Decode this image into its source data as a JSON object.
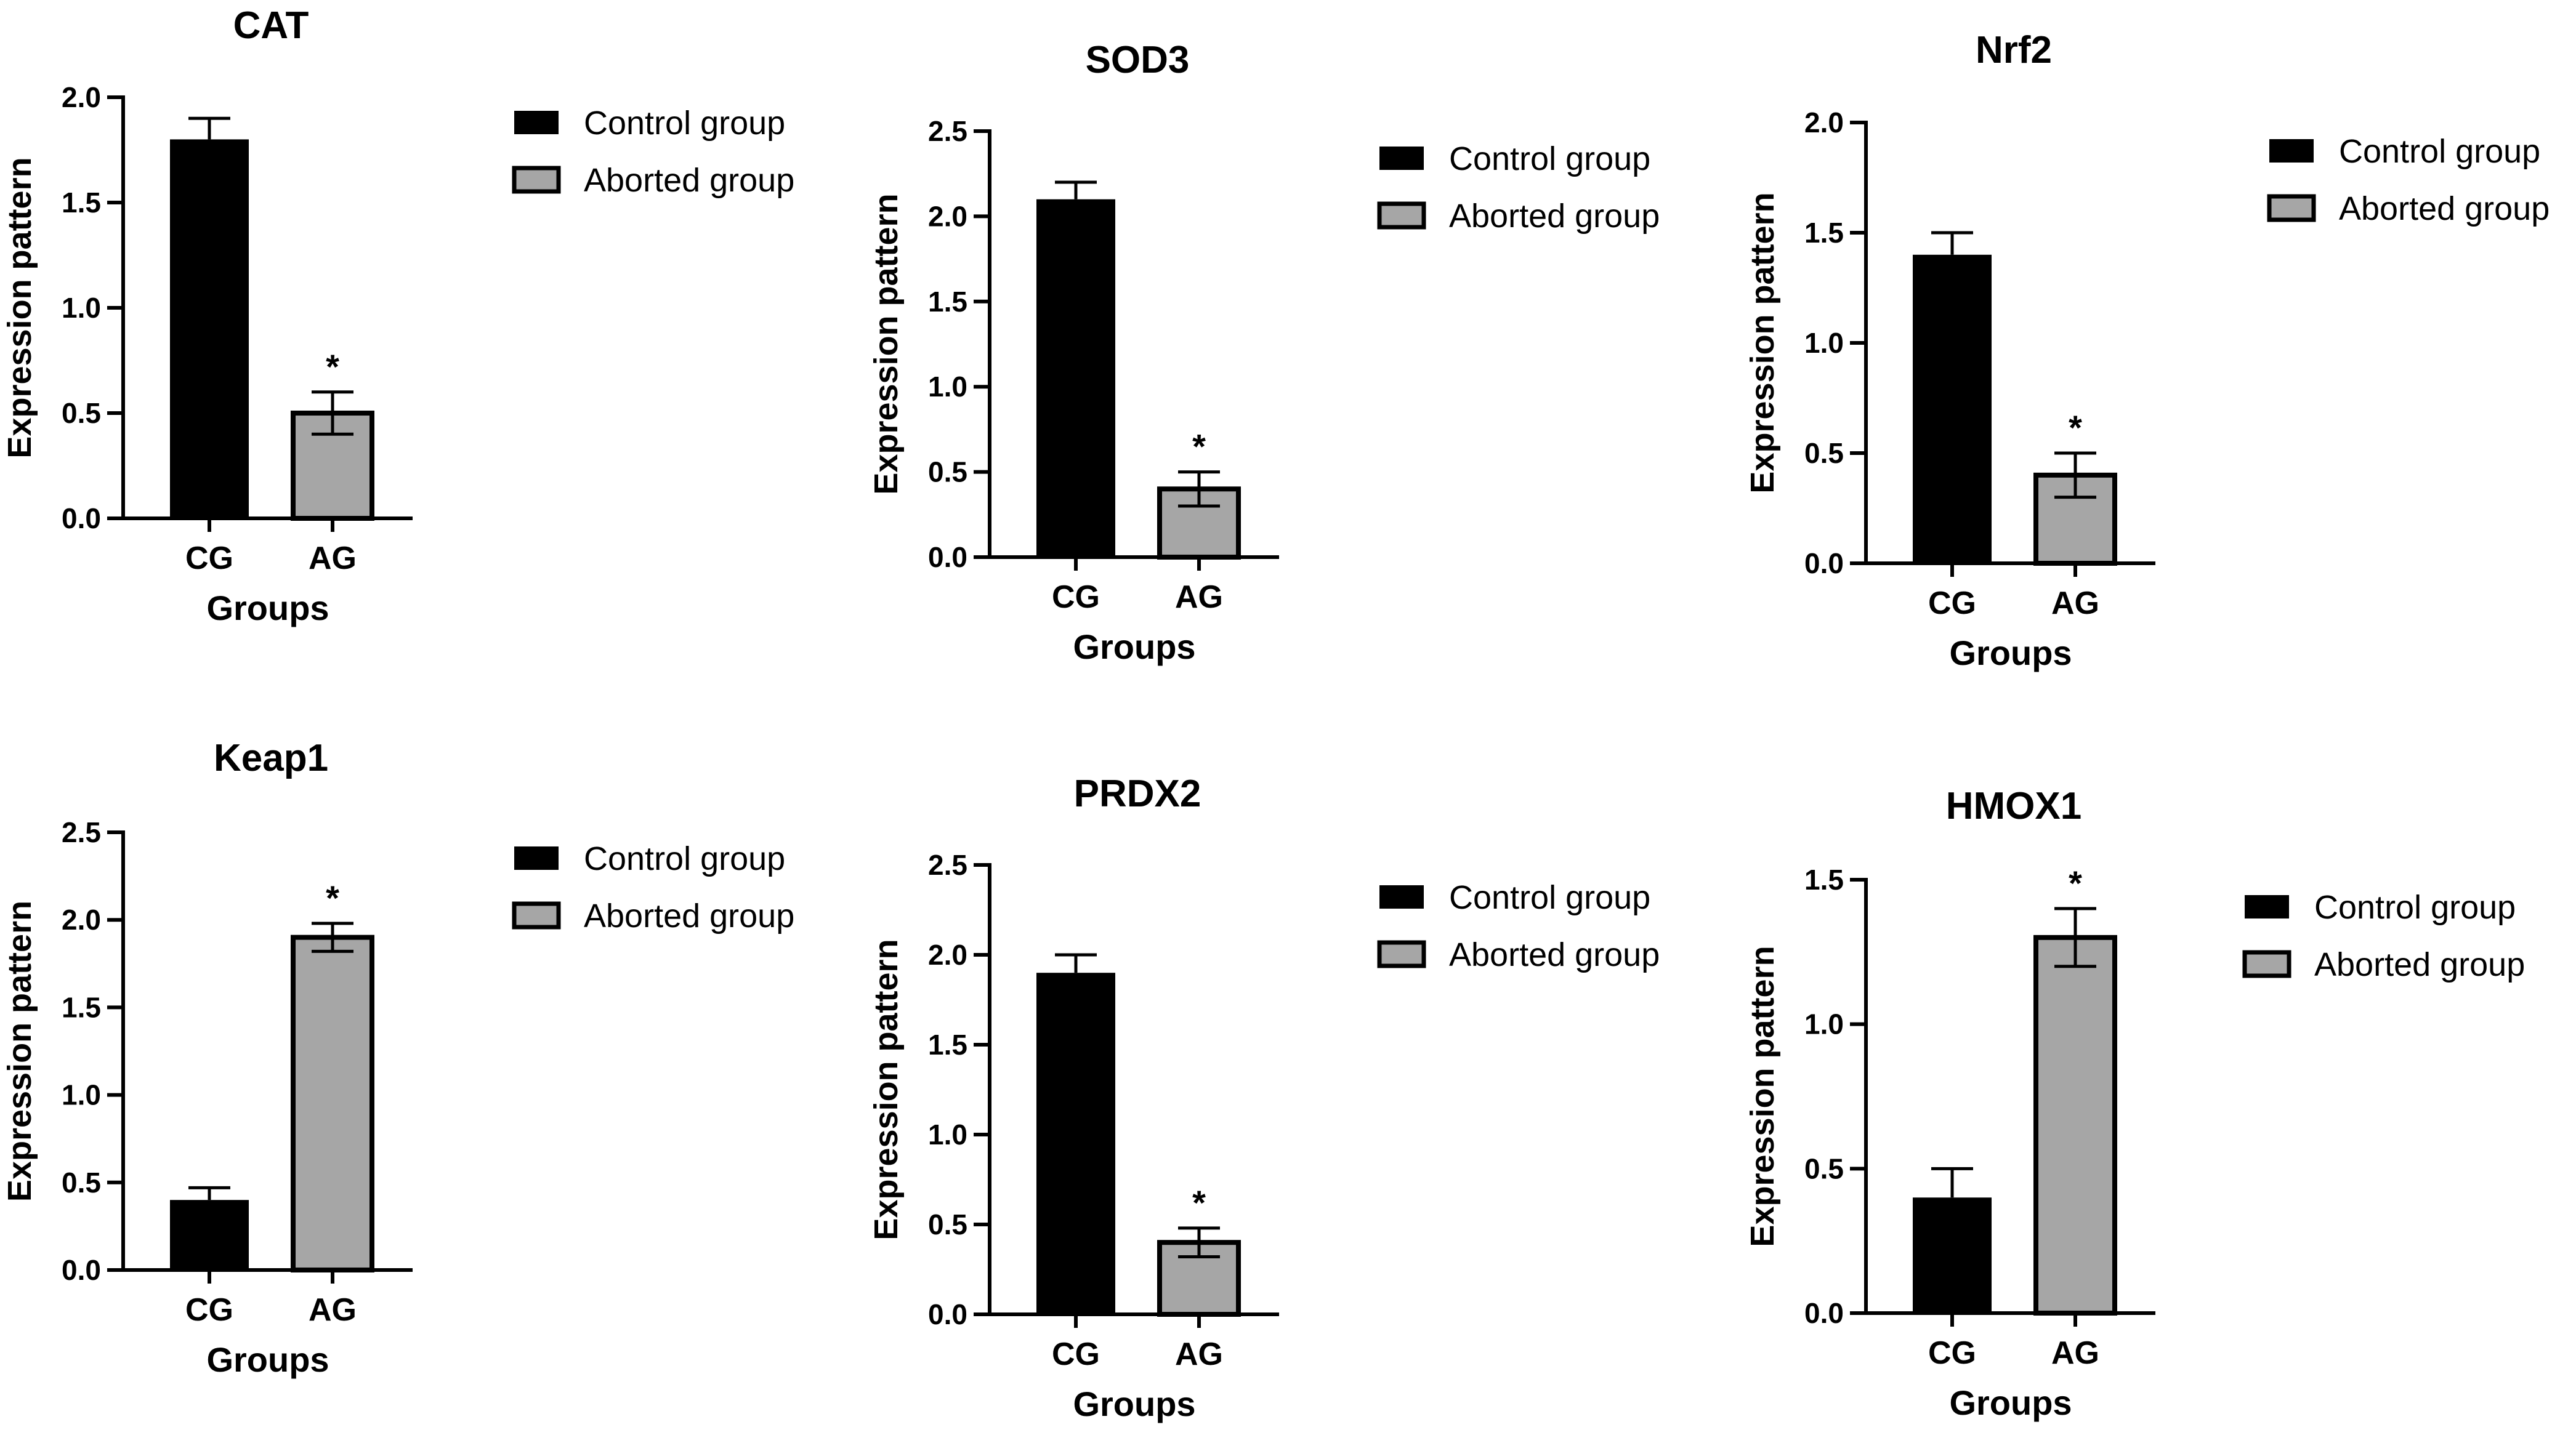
{
  "figure": {
    "colors": {
      "control": "#000000",
      "aborted": "#a6a6a6",
      "axis": "#000000"
    }
  },
  "chart_data": [
    {
      "type": "bar",
      "title": "CAT",
      "xlabel": "Groups",
      "ylabel": "Expression pattern",
      "categories": [
        "CG",
        "AG"
      ],
      "values": [
        1.8,
        0.5
      ],
      "errors": [
        0.1,
        0.1
      ],
      "significance": [
        "",
        "*"
      ],
      "ylim": [
        0,
        2.0
      ],
      "yticks": [
        "0.0",
        "0.5",
        "1.0",
        "1.5",
        "2.0"
      ],
      "legend": [
        "Control group",
        "Aborted group"
      ]
    },
    {
      "type": "bar",
      "title": "SOD3",
      "xlabel": "Groups",
      "ylabel": "Expression pattern",
      "categories": [
        "CG",
        "AG"
      ],
      "values": [
        2.1,
        0.4
      ],
      "errors": [
        0.1,
        0.1
      ],
      "significance": [
        "",
        "*"
      ],
      "ylim": [
        0,
        2.5
      ],
      "yticks": [
        "0.0",
        "0.5",
        "1.0",
        "1.5",
        "2.0",
        "2.5"
      ],
      "legend": [
        "Control group",
        "Aborted group"
      ]
    },
    {
      "type": "bar",
      "title": "Nrf2",
      "xlabel": "Groups",
      "ylabel": "Expression pattern",
      "categories": [
        "CG",
        "AG"
      ],
      "values": [
        1.4,
        0.4
      ],
      "errors": [
        0.1,
        0.1
      ],
      "significance": [
        "",
        "*"
      ],
      "ylim": [
        0,
        2.0
      ],
      "yticks": [
        "0.0",
        "0.5",
        "1.0",
        "1.5",
        "2.0"
      ],
      "legend": [
        "Control group",
        "Aborted group"
      ]
    },
    {
      "type": "bar",
      "title": "Keap1",
      "xlabel": "Groups",
      "ylabel": "Expression pattern",
      "categories": [
        "CG",
        "AG"
      ],
      "values": [
        0.4,
        1.9
      ],
      "errors": [
        0.07,
        0.08
      ],
      "significance": [
        "",
        "*"
      ],
      "ylim": [
        0,
        2.5
      ],
      "yticks": [
        "0.0",
        "0.5",
        "1.0",
        "1.5",
        "2.0",
        "2.5"
      ],
      "legend": [
        "Control group",
        "Aborted group"
      ]
    },
    {
      "type": "bar",
      "title": "PRDX2",
      "xlabel": "Groups",
      "ylabel": "Expression pattern",
      "categories": [
        "CG",
        "AG"
      ],
      "values": [
        1.9,
        0.4
      ],
      "errors": [
        0.1,
        0.08
      ],
      "significance": [
        "",
        "*"
      ],
      "ylim": [
        0,
        2.5
      ],
      "yticks": [
        "0.0",
        "0.5",
        "1.0",
        "1.5",
        "2.0",
        "2.5"
      ],
      "legend": [
        "Control group",
        "Aborted group"
      ]
    },
    {
      "type": "bar",
      "title": "HMOX1",
      "xlabel": "Groups",
      "ylabel": "Expression pattern",
      "categories": [
        "CG",
        "AG"
      ],
      "values": [
        0.4,
        1.3
      ],
      "errors": [
        0.1,
        0.1
      ],
      "significance": [
        "",
        "*"
      ],
      "ylim": [
        0,
        1.5
      ],
      "yticks": [
        "0.0",
        "0.5",
        "1.0",
        "1.5"
      ],
      "legend": [
        "Control group",
        "Aborted group"
      ]
    }
  ]
}
